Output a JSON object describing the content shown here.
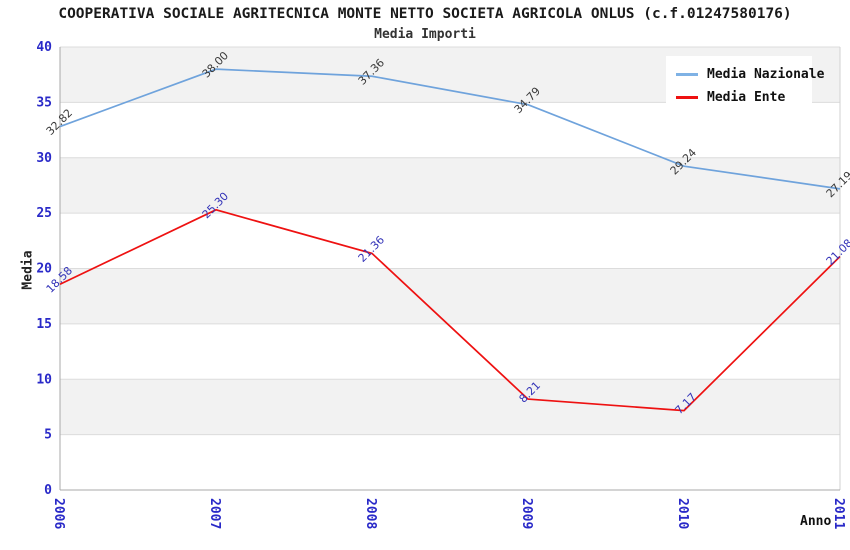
{
  "title": "COOPERATIVA SOCIALE AGRITECNICA MONTE NETTO SOCIETA AGRICOLA ONLUS (c.f.01247580176)",
  "subtitle": "Media Importi",
  "legend": {
    "items": [
      {
        "label": "Media Nazionale",
        "color": "#7FB2E5"
      },
      {
        "label": "Media Ente",
        "color": "#EE1111"
      }
    ]
  },
  "axes": {
    "y_label": "Media",
    "x_label": "Anno",
    "y_ticks": [
      0,
      5,
      10,
      15,
      20,
      25,
      30,
      35,
      40
    ],
    "x_ticks": [
      "2006",
      "2007",
      "2008",
      "2009",
      "2010",
      "2011"
    ],
    "tick_color": "#2929C8"
  },
  "chart_data": {
    "type": "line",
    "title": "Media Importi",
    "xlabel": "Anno",
    "ylabel": "Media",
    "x": [
      2006,
      2007,
      2008,
      2009,
      2010,
      2011
    ],
    "series": [
      {
        "name": "Media Nazionale",
        "values": [
          32.82,
          38.0,
          37.36,
          34.79,
          29.24,
          27.19
        ],
        "labels": [
          "32.82",
          "38.00",
          "37.36",
          "34.79",
          "29.24",
          "27.19"
        ],
        "color": "#6FA3DC",
        "label_color": "#3A3A3A"
      },
      {
        "name": "Media Ente",
        "values": [
          18.58,
          25.3,
          21.36,
          8.21,
          7.17,
          21.08
        ],
        "labels": [
          "18.58",
          "25.30",
          "21.36",
          "8.21",
          "7.17",
          "21.08"
        ],
        "color": "#EE1111",
        "label_color": "#3333B8"
      }
    ],
    "ylim": [
      0,
      40
    ],
    "grid": true,
    "legend_position": "top-right",
    "band_colors": [
      "#F2F2F2",
      "#FFFFFF"
    ],
    "gridline_color": "#DCDCDC",
    "axis_color": "#A8A8A8"
  }
}
